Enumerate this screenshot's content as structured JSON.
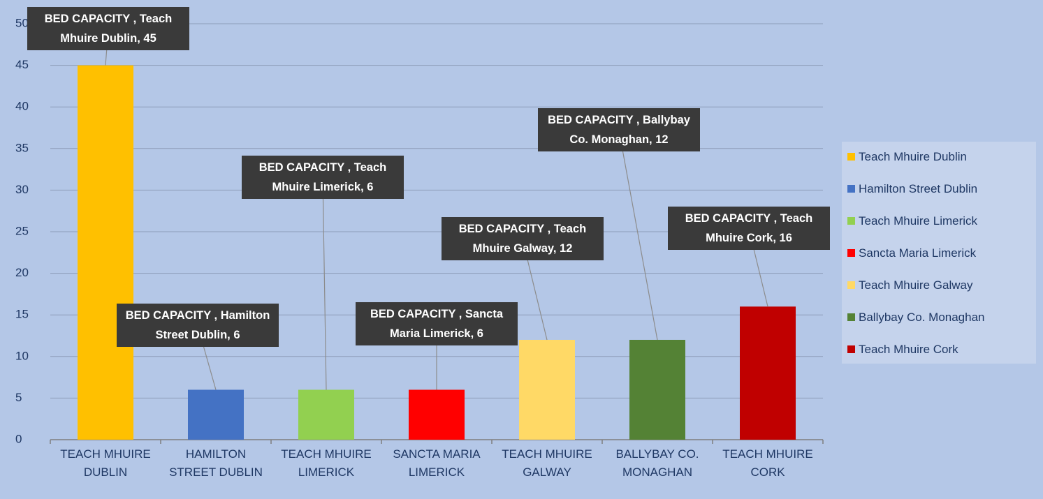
{
  "chart_data": {
    "type": "bar",
    "categories": [
      "TEACH MHUIRE DUBLIN",
      "HAMILTON STREET DUBLIN",
      "TEACH MHUIRE LIMERICK",
      "SANCTA MARIA LIMERICK",
      "TEACH MHUIRE GALWAY",
      "BALLYBAY CO. MONAGHAN",
      "TEACH MHUIRE CORK"
    ],
    "values": [
      45,
      6,
      6,
      6,
      12,
      12,
      16
    ],
    "value_labels": [
      "BED CAPACITY , Teach Mhuire Dublin, 45",
      "BED CAPACITY , Hamilton Street Dublin, 6",
      "BED CAPACITY , Teach Mhuire Limerick, 6",
      "BED CAPACITY , Sancta Maria Limerick, 6",
      "BED CAPACITY , Teach Mhuire Galway, 12",
      "BED CAPACITY , Ballybay Co. Monaghan, 12",
      "BED CAPACITY , Teach Mhuire Cork, 16"
    ],
    "colors": [
      "#ffc000",
      "#4472c4",
      "#92d050",
      "#ff0000",
      "#ffd966",
      "#548235",
      "#c00000"
    ],
    "legend": [
      "Teach Mhuire Dublin",
      "Hamilton Street Dublin",
      "Teach Mhuire Limerick",
      "Sancta Maria Limerick",
      "Teach Mhuire Galway",
      "Ballybay Co. Monaghan",
      "Teach Mhuire Cork"
    ],
    "ylim": [
      0,
      50
    ],
    "yticks": [
      0,
      5,
      10,
      15,
      20,
      25,
      30,
      35,
      40,
      45,
      50
    ],
    "grid": true
  }
}
